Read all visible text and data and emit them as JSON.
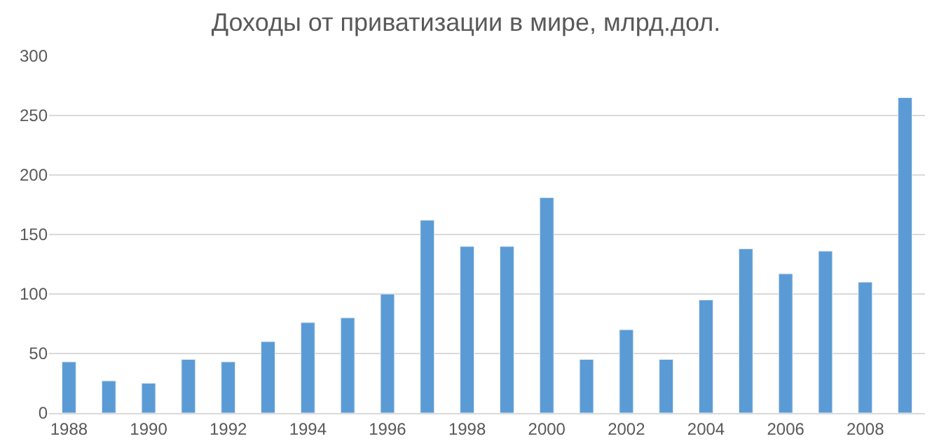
{
  "chart_data": {
    "type": "bar",
    "title": "Доходы от приватизации в мире, млрд.дол.",
    "categories": [
      "1988",
      null,
      "1990",
      null,
      "1992",
      null,
      "1994",
      null,
      "1996",
      null,
      "1998",
      null,
      "2000",
      null,
      "2002",
      null,
      "2004",
      null,
      "2006",
      null,
      "2008",
      null
    ],
    "values": [
      43,
      27,
      25,
      45,
      43,
      60,
      76,
      80,
      100,
      162,
      140,
      140,
      181,
      45,
      70,
      45,
      95,
      138,
      117,
      136,
      110,
      265
    ],
    "color": "#5b9bd5",
    "ylim": [
      0,
      300
    ],
    "yticks": [
      0,
      50,
      100,
      150,
      200,
      250,
      300
    ],
    "grid": "y"
  }
}
